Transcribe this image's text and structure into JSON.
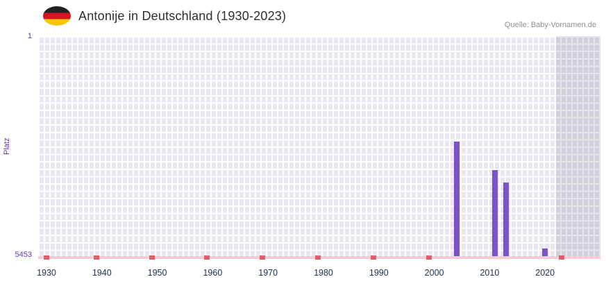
{
  "header": {
    "title": "Antonije in Deutschland (1930-2023)",
    "source": "Quelle: Baby-Vornamen.de",
    "flag_icon": "german-flag-icon"
  },
  "chart_data": {
    "type": "bar",
    "title": "Antonije in Deutschland (1930-2023)",
    "ylabel": "Platz",
    "y_axis": {
      "min": 1,
      "max": 5453,
      "inverted": true,
      "top_label": "1",
      "bottom_label": "5453"
    },
    "x_axis": {
      "tick_labels": [
        "1930",
        "1940",
        "1950",
        "1960",
        "1970",
        "1980",
        "1990",
        "2000",
        "2010",
        "2020"
      ],
      "x_range": [
        1928.5,
        2030
      ],
      "grid": true
    },
    "bars": [
      {
        "year": 2004,
        "platz": 2600
      },
      {
        "year": 2011,
        "platz": 3310
      },
      {
        "year": 2013,
        "platz": 3620
      },
      {
        "year": 2020,
        "platz": 5250
      }
    ],
    "baseline_marker_years": [
      1930,
      1939,
      1949,
      1959,
      1969,
      1979,
      1989,
      1999,
      2023
    ],
    "highlight_band": {
      "from_year": 2022,
      "to_year": 2030
    },
    "colors": {
      "bar": "#7a52c9",
      "plot_bg": "#e9e6f4",
      "grid_line": "#ffffff",
      "baseline": "#f4ccd4",
      "marker": "#e05c68",
      "y_text": "#5e35b1",
      "x_text": "#223055",
      "title_text": "#2e2e2e",
      "source_text": "#909090"
    }
  }
}
